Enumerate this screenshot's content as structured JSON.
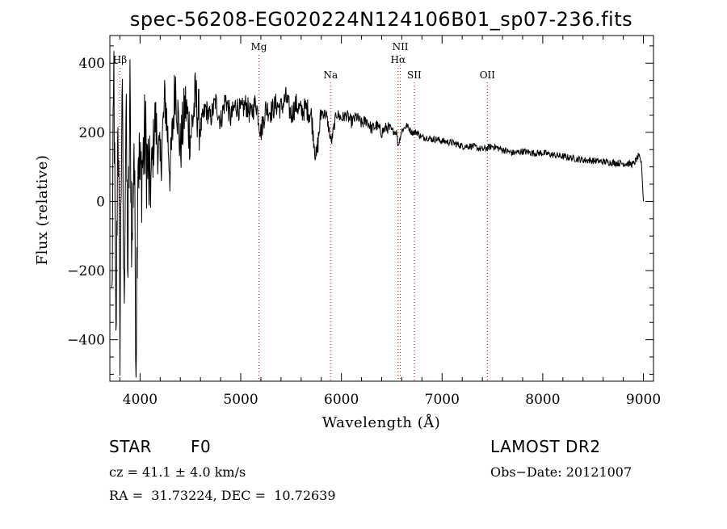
{
  "chart_data": {
    "type": "line",
    "title": "spec-56208-EG020224N124106B01_sp07-236.fits",
    "xlabel": "Wavelength (Å)",
    "ylabel": "Flux (relative)",
    "xlim": [
      3700,
      9100
    ],
    "ylim": [
      -520,
      480
    ],
    "x_ticks": [
      4000,
      5000,
      6000,
      7000,
      8000,
      9000
    ],
    "y_ticks": [
      -400,
      -200,
      0,
      200,
      400
    ],
    "x_tick_labels": [
      "4000",
      "5000",
      "6000",
      "7000",
      "8000",
      "9000"
    ],
    "y_tick_labels": [
      "−400",
      "−200",
      "0",
      "200",
      "400"
    ],
    "grid": false,
    "line_color": "#000000",
    "marker_color": "#cc0000",
    "spectral_lines": [
      {
        "label": "Hβ",
        "x": 3800,
        "row": 1
      },
      {
        "label": "Mg",
        "x": 5180,
        "row": 0
      },
      {
        "label": "Na",
        "x": 5893,
        "row": 2
      },
      {
        "label": "NII",
        "x": 6585,
        "row": 0
      },
      {
        "label": "Hα",
        "x": 6563,
        "row": 1
      },
      {
        "label": "SII",
        "x": 6724,
        "row": 2
      },
      {
        "label": "OII",
        "x": 7450,
        "row": 2
      }
    ],
    "series": [
      {
        "x": [
          3720,
          3740,
          3760,
          3780,
          3800,
          3820,
          3840,
          3860,
          3880,
          3900,
          3920,
          3940,
          3960,
          3980,
          4000,
          4050,
          4100,
          4150,
          4200,
          4250,
          4300,
          4350,
          4400,
          4450,
          4500,
          4550,
          4600,
          4650,
          4700,
          4750,
          4800,
          4850,
          4900,
          4950,
          5000,
          5050,
          5100,
          5150,
          5200,
          5250,
          5300,
          5350,
          5400,
          5450,
          5500,
          5550,
          5600,
          5650,
          5700,
          5750,
          5800,
          5850,
          5900,
          5950,
          6000,
          6050,
          6100,
          6150,
          6200,
          6250,
          6300,
          6350,
          6400,
          6450,
          6500,
          6550,
          6563,
          6600,
          6650,
          6700,
          6750,
          6800,
          6850,
          6900,
          6950,
          7000,
          7100,
          7200,
          7300,
          7400,
          7500,
          7600,
          7700,
          7800,
          7900,
          8000,
          8100,
          8200,
          8300,
          8400,
          8500,
          8600,
          8700,
          8800,
          8900,
          8950,
          8980,
          9000
        ],
        "y": [
          -300,
          380,
          -450,
          300,
          -380,
          350,
          -300,
          250,
          -200,
          300,
          -150,
          200,
          -430,
          180,
          50,
          180,
          20,
          240,
          100,
          300,
          80,
          350,
          150,
          280,
          190,
          300,
          210,
          270,
          240,
          290,
          230,
          300,
          240,
          280,
          260,
          280,
          250,
          290,
          200,
          270,
          260,
          280,
          270,
          300,
          250,
          280,
          260,
          270,
          250,
          120,
          260,
          250,
          170,
          255,
          240,
          250,
          230,
          245,
          225,
          235,
          210,
          220,
          200,
          215,
          205,
          200,
          160,
          205,
          220,
          200,
          200,
          185,
          185,
          180,
          180,
          175,
          170,
          160,
          160,
          150,
          160,
          150,
          140,
          145,
          140,
          140,
          135,
          130,
          125,
          120,
          118,
          115,
          112,
          110,
          108,
          130,
          115,
          0
        ]
      }
    ]
  },
  "info": {
    "object_class": "STAR",
    "subclass": "F0",
    "survey": "LAMOST DR2",
    "cz": "cz = 41.1 ± 4.0 km/s",
    "obs_date": "Obs−Date: 20121007",
    "coords": "RA =  31.73224, DEC =  10.72639"
  }
}
